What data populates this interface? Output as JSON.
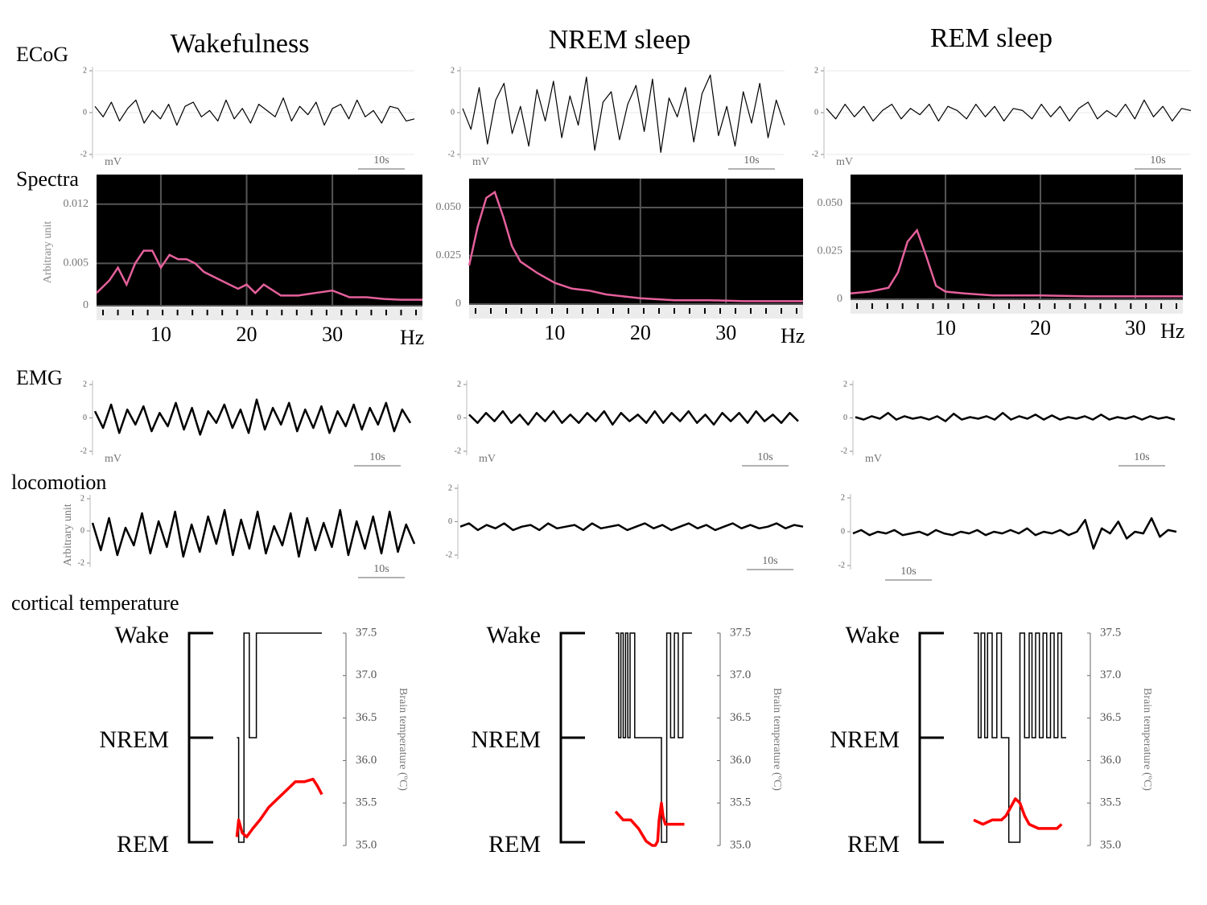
{
  "row_labels": [
    "ECoG",
    "Spectra",
    "EMG",
    "locomotion",
    "cortical temperature"
  ],
  "chart_data": [
    {
      "type": "line",
      "title": "Wakefulness",
      "ylim": [
        -2,
        2
      ],
      "yticks": [
        -2,
        0,
        2
      ],
      "grid": true,
      "ylabel": "mV",
      "scale_label": "10s",
      "color": "#000000",
      "values": [
        0.3,
        -0.2,
        0.5,
        -0.4,
        0.2,
        0.6,
        -0.5,
        0.1,
        -0.3,
        0.4,
        -0.6,
        0.3,
        0.5,
        -0.2,
        0.1,
        -0.4,
        0.6,
        -0.3,
        0.2,
        -0.5,
        0.4,
        0.1,
        -0.2,
        0.7,
        -0.4,
        0.3,
        -0.1,
        0.5,
        -0.6,
        0.2,
        0.4,
        -0.3,
        0.6,
        -0.2,
        0.1,
        -0.5,
        0.3,
        0.2,
        -0.4,
        -0.3
      ]
    },
    {
      "type": "line",
      "title": "NREM sleep",
      "ylim": [
        -2,
        2
      ],
      "yticks": [
        -2,
        0,
        2
      ],
      "grid": true,
      "ylabel": "mV",
      "scale_label": "10s",
      "color": "#000000",
      "values": [
        0.2,
        -0.8,
        1.2,
        -1.5,
        0.6,
        1.4,
        -1.0,
        0.3,
        -1.6,
        1.1,
        -0.4,
        1.5,
        -1.2,
        0.8,
        -0.6,
        1.7,
        -1.8,
        0.5,
        1.0,
        -1.3,
        0.4,
        1.3,
        -0.9,
        1.6,
        -1.9,
        0.7,
        -0.2,
        1.2,
        -1.4,
        0.9,
        1.8,
        -1.1,
        0.3,
        -1.6,
        1.0,
        -0.5,
        1.4,
        -1.2,
        0.6,
        -0.6
      ]
    },
    {
      "type": "line",
      "title": "REM sleep",
      "ylim": [
        -2,
        2
      ],
      "yticks": [
        -2,
        0,
        2
      ],
      "grid": true,
      "ylabel": "mV",
      "scale_label": "10s",
      "color": "#000000",
      "values": [
        0.2,
        -0.3,
        0.4,
        -0.2,
        0.3,
        -0.4,
        0.1,
        0.4,
        -0.3,
        0.2,
        -0.1,
        0.4,
        -0.4,
        0.3,
        0.1,
        -0.3,
        0.4,
        -0.2,
        0.3,
        -0.4,
        0.2,
        0.1,
        -0.3,
        0.4,
        -0.2,
        0.3,
        -0.4,
        0.2,
        0.5,
        -0.3,
        0.1,
        -0.2,
        0.4,
        -0.3,
        0.6,
        -0.2,
        0.3,
        -0.4,
        0.2,
        0.1
      ]
    },
    {
      "type": "spectrum",
      "ylabel": "Arbitrary unit",
      "xlabel": "Hz",
      "color": "#e5609b",
      "grid": true,
      "xlim": [
        2.5,
        40.5
      ],
      "xticks": [
        10,
        20,
        30
      ],
      "ylim": [
        0,
        0.0155
      ],
      "yticks": [
        0,
        0.005,
        0.012
      ],
      "x": [
        2.5,
        4,
        5,
        6,
        7,
        8,
        9,
        10,
        11,
        12,
        13,
        14,
        15,
        17,
        19,
        20,
        21,
        22,
        24,
        26,
        28,
        30,
        32,
        34,
        36,
        38,
        40.5
      ],
      "values": [
        0.0015,
        0.003,
        0.0045,
        0.0025,
        0.005,
        0.0065,
        0.0065,
        0.0045,
        0.006,
        0.0055,
        0.0055,
        0.005,
        0.004,
        0.003,
        0.002,
        0.0025,
        0.0015,
        0.0025,
        0.0012,
        0.0012,
        0.0015,
        0.0018,
        0.001,
        0.001,
        0.0008,
        0.0007,
        0.0007
      ]
    },
    {
      "type": "spectrum",
      "xlabel": "Hz",
      "color": "#e5609b",
      "grid": true,
      "xlim": [
        0,
        39
      ],
      "xticks": [
        10,
        20,
        30
      ],
      "ylim": [
        0,
        0.065
      ],
      "yticks": [
        0,
        {
          "value": 0.025,
          "label": "0.025"
        },
        {
          "value": 0.05,
          "label": "0.050"
        }
      ],
      "x": [
        0,
        1,
        2,
        3,
        4,
        5,
        6,
        8,
        10,
        12,
        14,
        16,
        18,
        20,
        24,
        28,
        32,
        36,
        39
      ],
      "values": [
        0.02,
        0.04,
        0.055,
        0.058,
        0.045,
        0.03,
        0.022,
        0.016,
        0.011,
        0.008,
        0.007,
        0.005,
        0.004,
        0.003,
        0.002,
        0.002,
        0.0015,
        0.0015,
        0.0015
      ]
    },
    {
      "type": "spectrum",
      "xlabel": "Hz",
      "color": "#e5609b",
      "grid": true,
      "xlim": [
        0,
        35
      ],
      "xticks": [
        10,
        20,
        30
      ],
      "ylim": [
        0,
        0.065
      ],
      "yticks": [
        0,
        {
          "value": 0.025,
          "label": "0.025"
        },
        {
          "value": 0.05,
          "label": "0.050"
        }
      ],
      "x": [
        0,
        2,
        4,
        5,
        6,
        7,
        8,
        9,
        10,
        12,
        15,
        20,
        25,
        30,
        35
      ],
      "values": [
        0.003,
        0.004,
        0.006,
        0.014,
        0.03,
        0.036,
        0.022,
        0.007,
        0.004,
        0.003,
        0.002,
        0.002,
        0.0015,
        0.0015,
        0.0015
      ]
    },
    {
      "type": "line",
      "ylim": [
        -2,
        2
      ],
      "yticks": [
        -2,
        0,
        2
      ],
      "ylabel": "mV",
      "scale_label": "10s",
      "color": "#000000",
      "values": [
        0.4,
        -0.6,
        0.8,
        -0.9,
        0.5,
        -0.4,
        0.7,
        -0.8,
        0.3,
        -0.5,
        0.9,
        -0.7,
        0.6,
        -1.0,
        0.4,
        -0.3,
        0.8,
        -0.6,
        0.5,
        -0.9,
        1.1,
        -0.7,
        0.6,
        -0.4,
        0.9,
        -0.8,
        0.5,
        -0.6,
        0.7,
        -0.9,
        0.4,
        -0.5,
        0.8,
        -0.7,
        0.6,
        -0.4,
        0.9,
        -0.8,
        0.5,
        -0.3
      ]
    },
    {
      "type": "line",
      "ylim": [
        -2,
        2
      ],
      "yticks": [
        -2,
        0,
        2
      ],
      "ylabel": "mV",
      "scale_label": "10s",
      "color": "#000000",
      "values": [
        0.2,
        -0.3,
        0.3,
        -0.2,
        0.4,
        -0.3,
        0.2,
        -0.4,
        0.3,
        -0.2,
        0.4,
        -0.3,
        0.2,
        -0.3,
        0.3,
        -0.2,
        0.4,
        -0.4,
        0.3,
        -0.2,
        0.2,
        -0.3,
        0.4,
        -0.3,
        0.3,
        -0.2,
        0.4,
        -0.3,
        0.2,
        -0.4,
        0.3,
        -0.2,
        0.3,
        -0.3,
        0.4,
        -0.2,
        0.2,
        -0.3,
        0.3,
        -0.2
      ]
    },
    {
      "type": "line",
      "ylim": [
        -2,
        2
      ],
      "yticks": [
        -2,
        0,
        2
      ],
      "ylabel": "mV",
      "scale_label": "10s",
      "color": "#000000",
      "values": [
        0.05,
        -0.1,
        0.1,
        -0.05,
        0.3,
        -0.1,
        0.1,
        -0.05,
        0.05,
        -0.1,
        0.1,
        -0.2,
        0.25,
        -0.1,
        0.05,
        -0.05,
        0.1,
        -0.1,
        0.3,
        -0.1,
        0.1,
        -0.05,
        0.2,
        -0.1,
        0.15,
        -0.1,
        0.05,
        -0.05,
        0.1,
        -0.1,
        0.2,
        -0.1,
        0.05,
        -0.05,
        0.1,
        -0.1,
        0.1,
        -0.05,
        0.05,
        -0.1
      ]
    },
    {
      "type": "line",
      "ylim": [
        -2,
        2
      ],
      "yticks": [
        -2,
        0,
        2
      ],
      "ylabel": "Arbitrary unit",
      "scale_label": "10s",
      "color": "#000000",
      "values": [
        0.5,
        -1.2,
        0.8,
        -1.5,
        0.2,
        -0.9,
        1.1,
        -1.4,
        0.6,
        -1.0,
        1.2,
        -1.6,
        0.4,
        -1.3,
        0.9,
        -0.8,
        1.3,
        -1.5,
        0.7,
        -1.1,
        1.2,
        -1.4,
        0.3,
        -0.9,
        1.1,
        -1.6,
        0.8,
        -1.2,
        0.5,
        -1.0,
        1.3,
        -1.5,
        0.6,
        -1.1,
        0.9,
        -1.4,
        1.2,
        -1.3,
        0.4,
        -0.8
      ]
    },
    {
      "type": "line",
      "ylim": [
        -2,
        2
      ],
      "yticks": [
        -2,
        0,
        2
      ],
      "scale_label": "10s",
      "color": "#000000",
      "values": [
        -0.3,
        -0.1,
        -0.5,
        -0.2,
        -0.4,
        -0.1,
        -0.5,
        -0.3,
        -0.2,
        -0.5,
        -0.1,
        -0.4,
        -0.3,
        -0.2,
        -0.5,
        -0.1,
        -0.4,
        -0.3,
        -0.2,
        -0.5,
        -0.3,
        -0.1,
        -0.4,
        -0.2,
        -0.5,
        -0.3,
        -0.1,
        -0.4,
        -0.2,
        -0.5,
        -0.3,
        -0.1,
        -0.4,
        -0.2,
        -0.4,
        -0.3,
        -0.1,
        -0.4,
        -0.2,
        -0.3
      ]
    },
    {
      "type": "line",
      "ylim": [
        -2,
        2
      ],
      "yticks": [
        -2,
        0,
        2
      ],
      "scale_label": "10s",
      "color": "#000000",
      "values": [
        -0.1,
        0.1,
        -0.2,
        0.0,
        -0.1,
        0.1,
        -0.2,
        -0.1,
        0.0,
        -0.2,
        0.1,
        -0.1,
        -0.2,
        0.0,
        -0.1,
        0.1,
        -0.2,
        0.0,
        -0.1,
        0.1,
        -0.1,
        0.2,
        -0.2,
        0.0,
        -0.1,
        0.1,
        -0.2,
        0.0,
        0.7,
        -1.0,
        0.2,
        -0.1,
        0.6,
        -0.4,
        0.0,
        -0.1,
        0.8,
        -0.3,
        0.1,
        0.0
      ]
    },
    {
      "type": "hypnogram",
      "xlim": [
        0,
        100
      ],
      "ylim": [
        0,
        2
      ],
      "yticks": [
        {
          "value": 2,
          "label": "Wake"
        },
        {
          "value": 1,
          "label": "NREM"
        },
        {
          "value": 0,
          "label": "REM"
        }
      ],
      "y2lim": [
        35,
        37.5
      ],
      "y2ticks": [
        {
          "value": 35,
          "label": "35.0"
        },
        35.5,
        {
          "value": 36,
          "label": "36.0"
        },
        36.5,
        {
          "value": 37,
          "label": "37.0"
        },
        37.5
      ],
      "y2label": "Brain temperature (ºC)",
      "series": [
        {
          "color": "#000000",
          "x": [
            4,
            6,
            12,
            18,
            26
          ],
          "values": [
            1,
            0,
            2,
            1,
            2
          ]
        },
        {
          "color": "#ff0000",
          "axis": "y2",
          "x": [
            4,
            6,
            10,
            15,
            22,
            30,
            40,
            50,
            60,
            70,
            80,
            90,
            95,
            100
          ],
          "values": [
            35.1,
            35.3,
            35.15,
            35.1,
            35.2,
            35.3,
            35.45,
            35.55,
            35.65,
            35.75,
            35.75,
            35.78,
            35.7,
            35.6
          ]
        }
      ]
    },
    {
      "type": "hypnogram",
      "xlim": [
        0,
        100
      ],
      "ylim": [
        0,
        2
      ],
      "yticks": [
        {
          "value": 2,
          "label": "Wake"
        },
        {
          "value": 1,
          "label": "NREM"
        },
        {
          "value": 0,
          "label": "REM"
        }
      ],
      "y2lim": [
        35,
        37.5
      ],
      "y2ticks": [
        {
          "value": 35,
          "label": "35.0"
        },
        35.5,
        {
          "value": 36,
          "label": "36.0"
        },
        36.5,
        {
          "value": 37,
          "label": "37.0"
        },
        37.5
      ],
      "y2label": "Brain temperature (ºC)",
      "series": [
        {
          "color": "#000000",
          "x": [
            0,
            4,
            7,
            10,
            13,
            16,
            19,
            25,
            60,
            67,
            72,
            77,
            82,
            88
          ],
          "values": [
            2,
            1,
            2,
            1,
            2,
            1,
            2,
            1,
            0,
            2,
            1,
            2,
            1,
            2
          ]
        },
        {
          "color": "#ff0000",
          "axis": "y2",
          "x": [
            0,
            10,
            20,
            30,
            40,
            48,
            52,
            55,
            57,
            60,
            62,
            65,
            70,
            80,
            90
          ],
          "values": [
            35.4,
            35.3,
            35.3,
            35.2,
            35.05,
            35.0,
            35.0,
            35.05,
            35.3,
            35.5,
            35.35,
            35.25,
            35.25,
            35.25,
            35.25
          ]
        }
      ]
    },
    {
      "type": "hypnogram",
      "xlim": [
        0,
        100
      ],
      "ylim": [
        0,
        2
      ],
      "yticks": [
        {
          "value": 2,
          "label": "Wake"
        },
        {
          "value": 1,
          "label": "NREM"
        },
        {
          "value": 0,
          "label": "REM"
        }
      ],
      "y2lim": [
        35,
        37.5
      ],
      "y2ticks": [
        {
          "value": 35,
          "label": "35.0"
        },
        35.5,
        {
          "value": 36,
          "label": "36.0"
        },
        36.5,
        {
          "value": 37,
          "label": "37.0"
        },
        37.5
      ],
      "y2label": "Brain temperature (ºC)",
      "series": [
        {
          "color": "#000000",
          "x": [
            0,
            5,
            8,
            12,
            15,
            20,
            25,
            30,
            38,
            50,
            55,
            60,
            63,
            67,
            71,
            75,
            79,
            83,
            87,
            91,
            95
          ],
          "values": [
            2,
            1,
            2,
            1,
            2,
            1,
            2,
            1,
            0,
            2,
            1,
            2,
            1,
            2,
            1,
            2,
            1,
            2,
            1,
            2,
            1
          ]
        },
        {
          "color": "#ff0000",
          "axis": "y2",
          "x": [
            0,
            10,
            20,
            30,
            35,
            40,
            45,
            50,
            55,
            60,
            70,
            80,
            90,
            95
          ],
          "values": [
            35.3,
            35.25,
            35.3,
            35.3,
            35.35,
            35.45,
            35.55,
            35.5,
            35.35,
            35.25,
            35.2,
            35.2,
            35.2,
            35.25
          ]
        }
      ]
    }
  ]
}
